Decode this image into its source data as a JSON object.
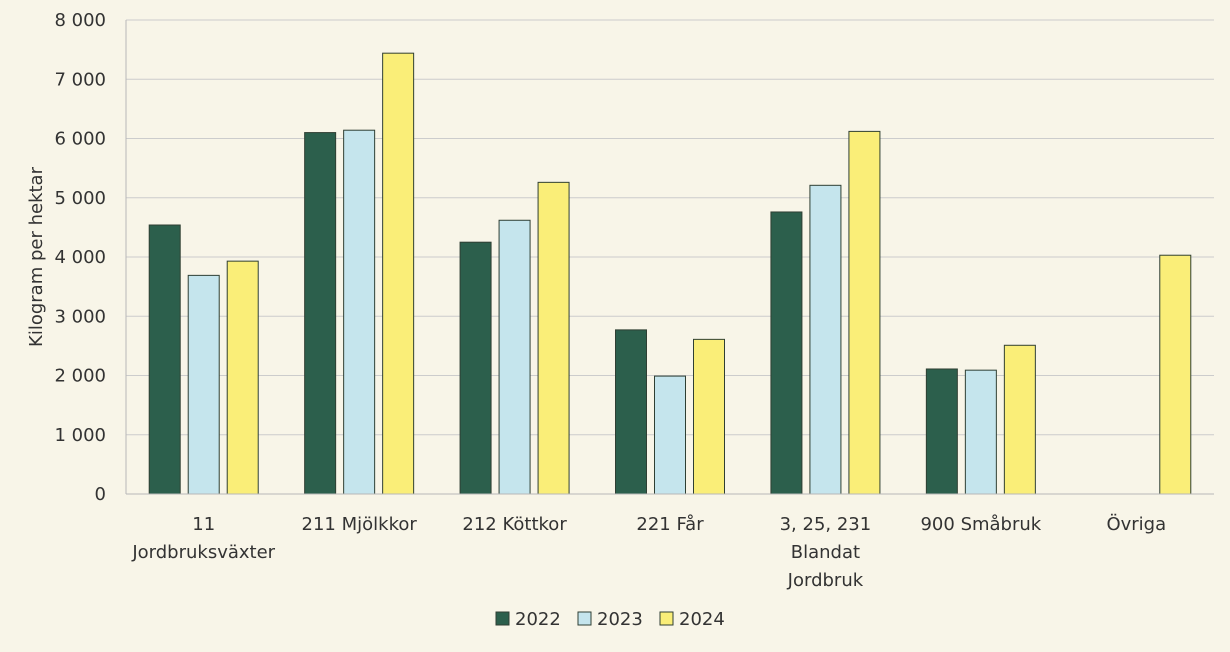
{
  "chart_data": {
    "type": "bar",
    "title": "",
    "xlabel": "",
    "ylabel": "Kilogram per hektar",
    "ylim": [
      0,
      8000
    ],
    "yticks": [
      0,
      1000,
      2000,
      3000,
      4000,
      5000,
      6000,
      7000,
      8000
    ],
    "ytick_labels": [
      "0",
      "1 000",
      "2 000",
      "3 000",
      "4 000",
      "5 000",
      "6 000",
      "7 000",
      "8 000"
    ],
    "grid": true,
    "legend_position": "bottom",
    "categories": [
      [
        "11",
        "Jordbruksväxter"
      ],
      [
        "211 Mjölkkor"
      ],
      [
        "212 Köttkor"
      ],
      [
        "221 Får"
      ],
      [
        "3, 25, 231",
        "Blandat",
        "Jordbruk"
      ],
      [
        "900 Småbruk"
      ],
      [
        "Övriga"
      ]
    ],
    "series": [
      {
        "name": "2022",
        "color": "#2c5f4c",
        "values": [
          4540,
          6100,
          4250,
          2770,
          4760,
          2110,
          null
        ]
      },
      {
        "name": "2023",
        "color": "#c5e5ed",
        "values": [
          3690,
          6140,
          4620,
          1990,
          5210,
          2090,
          null
        ]
      },
      {
        "name": "2024",
        "color": "#faee78",
        "values": [
          3930,
          7440,
          5260,
          2610,
          6120,
          2510,
          4030
        ]
      }
    ],
    "colors": {
      "background": "#f8f5e8",
      "grid": "#cccccc",
      "bar_stroke": "#2f3f33",
      "text": "#333333"
    }
  }
}
